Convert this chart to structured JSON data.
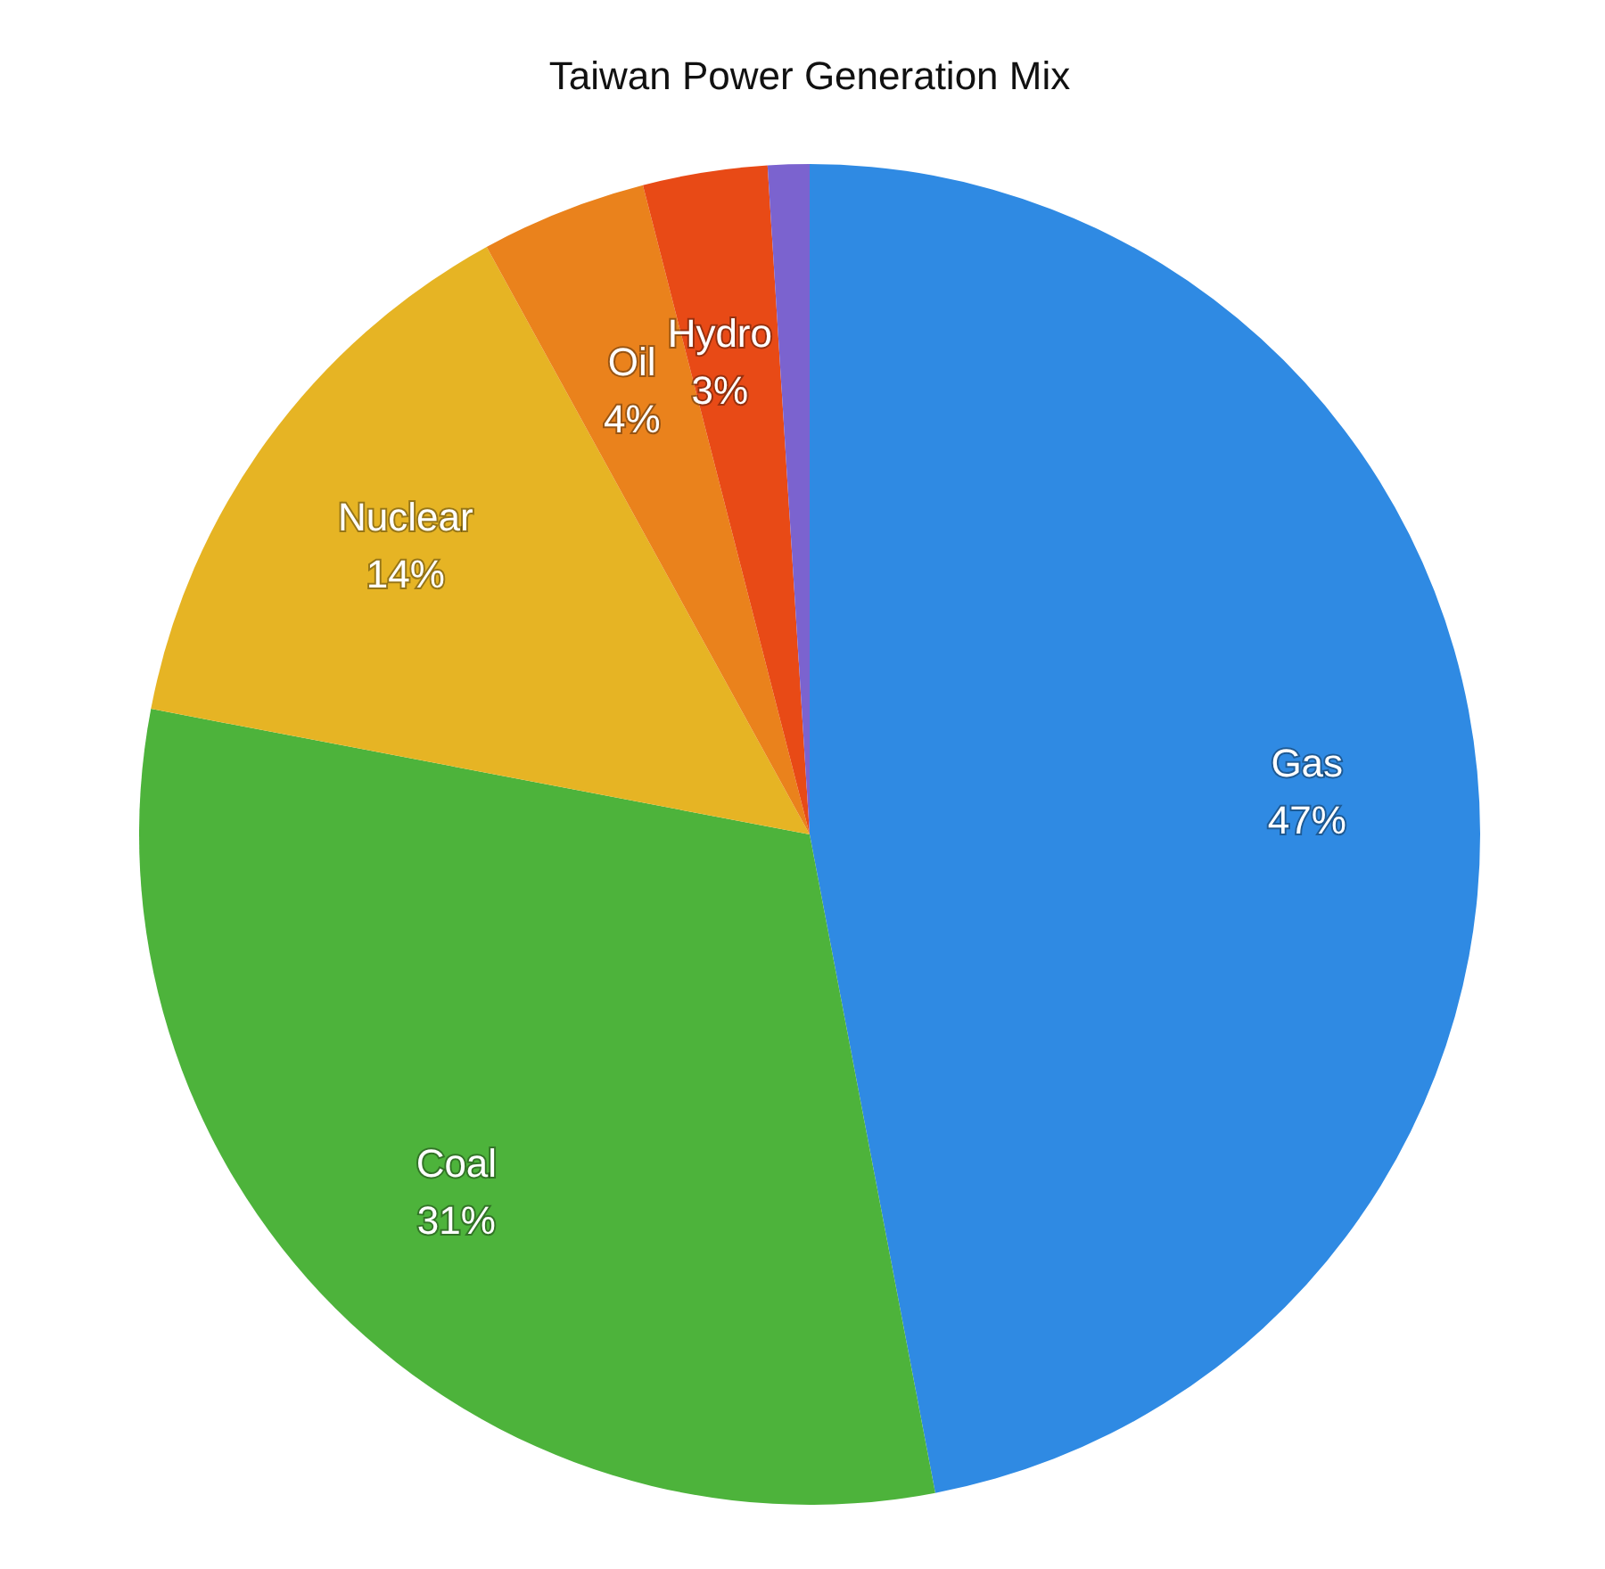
{
  "chart_data": {
    "type": "pie",
    "title": "Taiwan Power Generation Mix",
    "categories": [
      "Gas",
      "Coal",
      "Nuclear",
      "Oil",
      "Hydro",
      null
    ],
    "values": [
      47,
      31,
      14,
      4,
      3,
      1
    ],
    "value_labels": [
      "47%",
      "31%",
      "14%",
      "4%",
      "3%",
      null
    ],
    "colors": [
      "#2f8ae3",
      "#4db33b",
      "#e6b424",
      "#ea821c",
      "#e84a16",
      "#7b63cf"
    ]
  }
}
